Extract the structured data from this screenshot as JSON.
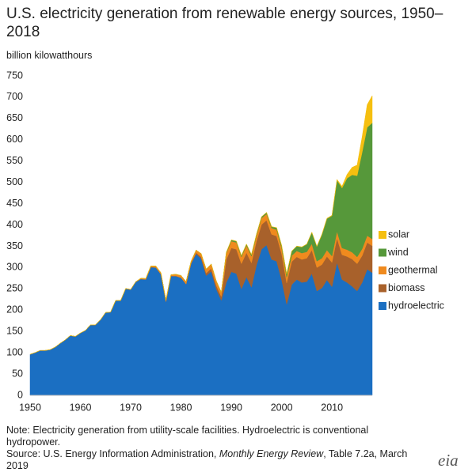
{
  "chart_data": {
    "type": "area",
    "title": "U.S. electricity generation from renewable energy sources, 1950–2018",
    "y_label": "billion kilowatthours",
    "note": "Note: Electricity generation from utility-scale facilities. Hydroelectric is conventional hydropower.",
    "source": [
      "Source: U.S. Energy Information Administration, ",
      "Monthly Energy Review",
      ", Table 7.2a, March 2019"
    ],
    "logo": "eia",
    "stacked": true,
    "x": [
      1950,
      1951,
      1952,
      1953,
      1954,
      1955,
      1956,
      1957,
      1958,
      1959,
      1960,
      1961,
      1962,
      1963,
      1964,
      1965,
      1966,
      1967,
      1968,
      1969,
      1970,
      1971,
      1972,
      1973,
      1974,
      1975,
      1976,
      1977,
      1978,
      1979,
      1980,
      1981,
      1982,
      1983,
      1984,
      1985,
      1986,
      1987,
      1988,
      1989,
      1990,
      1991,
      1992,
      1993,
      1994,
      1995,
      1996,
      1997,
      1998,
      1999,
      2000,
      2001,
      2002,
      2003,
      2004,
      2005,
      2006,
      2007,
      2008,
      2009,
      2010,
      2011,
      2012,
      2013,
      2014,
      2015,
      2016,
      2017,
      2018
    ],
    "xlim": [
      1950,
      2018
    ],
    "xticks": [
      1950,
      1960,
      1970,
      1980,
      1990,
      2000,
      2010
    ],
    "ylim": [
      0,
      750
    ],
    "yticks": [
      0,
      50,
      100,
      150,
      200,
      250,
      300,
      350,
      400,
      450,
      500,
      550,
      600,
      650,
      700,
      750
    ],
    "legend": "right",
    "series": [
      {
        "name": "hydroelectric",
        "color": "#1b6fc2",
        "values": [
          96,
          100,
          105,
          105,
          107,
          113,
          122,
          130,
          140,
          138,
          146,
          152,
          165,
          165,
          177,
          194,
          195,
          222,
          222,
          250,
          248,
          266,
          273,
          272,
          301,
          300,
          284,
          220,
          280,
          280,
          276,
          261,
          309,
          332,
          321,
          281,
          291,
          250,
          223,
          265,
          290,
          286,
          250,
          278,
          254,
          306,
          343,
          353,
          319,
          315,
          271,
          214,
          260,
          272,
          265,
          267,
          286,
          245,
          252,
          271,
          255,
          312,
          272,
          265,
          256,
          245,
          265,
          296,
          288
        ]
      },
      {
        "name": "biomass",
        "color": "#a8612b",
        "values": [
          0.4,
          0.4,
          0.4,
          0.4,
          0.4,
          0.4,
          0.4,
          0.4,
          0.4,
          0.4,
          0.4,
          0.4,
          0.4,
          0.4,
          0.4,
          0.4,
          0.4,
          0.4,
          0.4,
          0.4,
          0.3,
          0.3,
          0.3,
          0.3,
          0.3,
          0.3,
          0.3,
          0.3,
          0.3,
          0.3,
          0.3,
          0.4,
          1,
          3,
          4,
          6,
          7,
          8,
          9,
          54,
          56,
          57,
          59,
          57,
          57,
          56,
          58,
          58,
          59,
          59,
          61,
          50,
          54,
          53,
          54,
          55,
          55,
          55,
          55,
          55,
          57,
          57,
          58,
          61,
          64,
          64,
          63,
          63,
          63
        ]
      },
      {
        "name": "geothermal",
        "color": "#ef8a1e",
        "values": [
          0,
          0,
          0,
          0,
          0,
          0,
          0,
          0,
          0,
          0,
          0.03,
          0.1,
          0.1,
          0.2,
          0.2,
          0.2,
          0.2,
          0.3,
          0.4,
          0.4,
          0.5,
          0.5,
          1.5,
          2,
          2.5,
          3.2,
          3.6,
          3.6,
          3,
          3.9,
          5.1,
          5.7,
          4.8,
          6.1,
          7.7,
          9.3,
          10.3,
          10.8,
          10.3,
          14.6,
          16,
          16,
          16,
          17,
          16,
          13,
          15,
          15,
          15,
          15,
          14,
          14,
          14,
          14,
          15,
          15,
          15,
          15,
          15,
          15,
          15,
          16,
          16,
          16,
          16,
          16,
          16,
          16,
          16
        ]
      },
      {
        "name": "wind",
        "color": "#56983a",
        "values": [
          0,
          0,
          0,
          0,
          0,
          0,
          0,
          0,
          0,
          0,
          0,
          0,
          0,
          0,
          0,
          0,
          0,
          0,
          0,
          0,
          0,
          0,
          0,
          0,
          0,
          0,
          0,
          0,
          0,
          0,
          0,
          0,
          0,
          0,
          0,
          0,
          0,
          0,
          0,
          2.1,
          2.8,
          2.9,
          2.9,
          3,
          3.4,
          3.2,
          3.2,
          3.3,
          3,
          4.5,
          5.6,
          6.7,
          10.4,
          11.2,
          14.1,
          17.8,
          26.6,
          34.5,
          55.4,
          73.9,
          94.7,
          120.2,
          140.8,
          167.8,
          181.7,
          190.7,
          227,
          254.3,
          272.7
        ]
      },
      {
        "name": "solar",
        "color": "#f5bf10",
        "values": [
          0,
          0,
          0,
          0,
          0,
          0,
          0,
          0,
          0,
          0,
          0,
          0,
          0,
          0,
          0,
          0,
          0,
          0,
          0,
          0,
          0,
          0,
          0,
          0,
          0,
          0,
          0,
          0,
          0,
          0,
          0,
          0,
          0,
          0,
          0,
          0,
          0,
          0,
          0,
          0.3,
          0.3,
          0.3,
          0.3,
          0.3,
          0.3,
          0.3,
          0.3,
          0.3,
          0.3,
          0.3,
          0.5,
          0.5,
          0.5,
          0.5,
          0.5,
          0.5,
          0.5,
          0.6,
          0.9,
          0.9,
          1.2,
          1.8,
          4.3,
          9,
          17.7,
          24.9,
          36.1,
          53.3,
          63.8
        ]
      }
    ]
  }
}
